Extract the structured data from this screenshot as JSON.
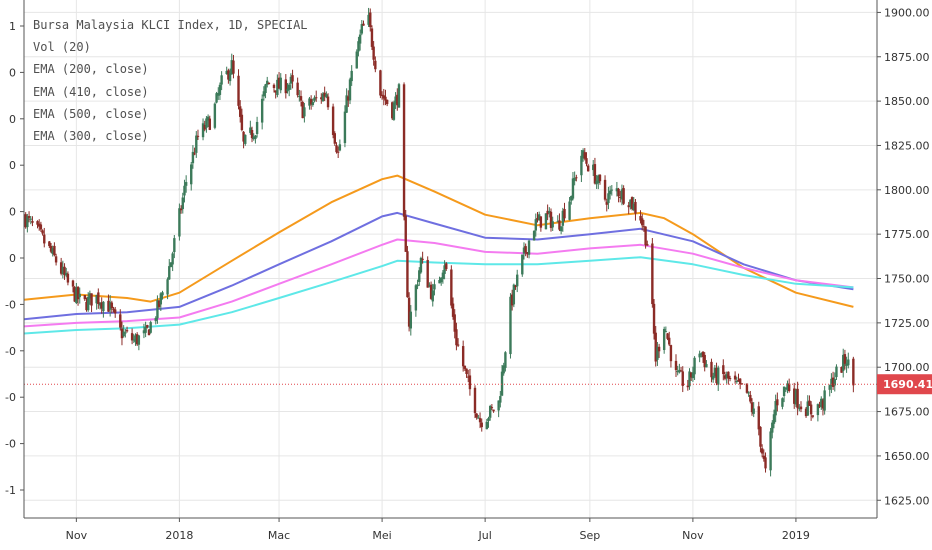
{
  "chart_data": {
    "type": "candlestick",
    "legend": {
      "entries": [
        "Bursa Malaysia KLCI Index, 1D, SPECIAL",
        "Vol (20)",
        "EMA (200, close)",
        "EMA (410, close)",
        "EMA (500, close)",
        "EMA (300, close)"
      ],
      "placement": "top-left"
    },
    "price_axis": {
      "side": "right",
      "range": [
        1615,
        1907
      ],
      "ticks": [
        1625,
        1650,
        1675,
        1700,
        1725,
        1750,
        1775,
        1800,
        1825,
        1850,
        1875,
        1900
      ],
      "tick_labels": [
        "1625.00",
        "1650.00",
        "1675.00",
        "1700.00",
        "1725.00",
        "1750.00",
        "1775.00",
        "1800.00",
        "1825.00",
        "1850.00",
        "1875.00",
        "1900.00"
      ]
    },
    "volume_axis": {
      "side": "left",
      "tick_labels": [
        "1",
        "0",
        "0",
        "0",
        "0",
        "0",
        "-0",
        "-0",
        "-0",
        "-0",
        "-1"
      ]
    },
    "x_axis": {
      "range": [
        "2017-10-01",
        "2019-02-18"
      ],
      "ticks": [
        {
          "date": "2017-11-01",
          "label": "Nov"
        },
        {
          "date": "2018-01-01",
          "label": "2018"
        },
        {
          "date": "2018-03-01",
          "label": "Mac"
        },
        {
          "date": "2018-05-01",
          "label": "Mei"
        },
        {
          "date": "2018-07-01",
          "label": "Jul"
        },
        {
          "date": "2018-09-01",
          "label": "Sep"
        },
        {
          "date": "2018-11-01",
          "label": "Nov"
        },
        {
          "date": "2019-01-01",
          "label": "2019"
        }
      ]
    },
    "last_price": {
      "value": 1690.41,
      "label": "1690.41",
      "color": "#e0474c"
    },
    "colors": {
      "up": "#3c7a5a",
      "down": "#8b2b26",
      "grid": "#e6e6e6"
    },
    "price_path": [
      [
        "2017-10-01",
        1785
      ],
      [
        "2017-10-10",
        1775
      ],
      [
        "2017-10-20",
        1760
      ],
      [
        "2017-10-28",
        1745
      ],
      [
        "2017-11-05",
        1735
      ],
      [
        "2017-11-12",
        1740
      ],
      [
        "2017-11-20",
        1735
      ],
      [
        "2017-11-27",
        1720
      ],
      [
        "2017-12-05",
        1715
      ],
      [
        "2017-12-12",
        1718
      ],
      [
        "2017-12-20",
        1735
      ],
      [
        "2017-12-27",
        1760
      ],
      [
        "2018-01-05",
        1805
      ],
      [
        "2018-01-12",
        1830
      ],
      [
        "2018-01-20",
        1840
      ],
      [
        "2018-01-26",
        1860
      ],
      [
        "2018-02-01",
        1870
      ],
      [
        "2018-02-08",
        1825
      ],
      [
        "2018-02-15",
        1835
      ],
      [
        "2018-02-22",
        1860
      ],
      [
        "2018-03-01",
        1858
      ],
      [
        "2018-03-08",
        1860
      ],
      [
        "2018-03-15",
        1845
      ],
      [
        "2018-03-22",
        1850
      ],
      [
        "2018-03-29",
        1855
      ],
      [
        "2018-04-05",
        1820
      ],
      [
        "2018-04-12",
        1860
      ],
      [
        "2018-04-19",
        1890
      ],
      [
        "2018-04-23",
        1895
      ],
      [
        "2018-04-30",
        1855
      ],
      [
        "2018-05-07",
        1845
      ],
      [
        "2018-05-11",
        1855
      ],
      [
        "2018-05-14",
        1780
      ],
      [
        "2018-05-17",
        1725
      ],
      [
        "2018-05-24",
        1760
      ],
      [
        "2018-05-31",
        1740
      ],
      [
        "2018-06-07",
        1760
      ],
      [
        "2018-06-14",
        1715
      ],
      [
        "2018-06-21",
        1690
      ],
      [
        "2018-06-28",
        1670
      ],
      [
        "2018-07-05",
        1675
      ],
      [
        "2018-07-09",
        1680
      ],
      [
        "2018-07-16",
        1735
      ],
      [
        "2018-07-23",
        1760
      ],
      [
        "2018-07-30",
        1780
      ],
      [
        "2018-08-06",
        1785
      ],
      [
        "2018-08-13",
        1780
      ],
      [
        "2018-08-20",
        1795
      ],
      [
        "2018-08-27",
        1820
      ],
      [
        "2018-09-03",
        1810
      ],
      [
        "2018-09-10",
        1795
      ],
      [
        "2018-09-17",
        1800
      ],
      [
        "2018-09-24",
        1795
      ],
      [
        "2018-10-01",
        1785
      ],
      [
        "2018-10-05",
        1770
      ],
      [
        "2018-10-10",
        1705
      ],
      [
        "2018-10-15",
        1725
      ],
      [
        "2018-10-22",
        1695
      ],
      [
        "2018-10-29",
        1690
      ],
      [
        "2018-11-05",
        1710
      ],
      [
        "2018-11-12",
        1695
      ],
      [
        "2018-11-19",
        1695
      ],
      [
        "2018-11-26",
        1690
      ],
      [
        "2018-12-03",
        1685
      ],
      [
        "2018-12-10",
        1665
      ],
      [
        "2018-12-14",
        1640
      ],
      [
        "2018-12-20",
        1680
      ],
      [
        "2018-12-27",
        1690
      ],
      [
        "2019-01-03",
        1680
      ],
      [
        "2019-01-10",
        1675
      ],
      [
        "2019-01-17",
        1680
      ],
      [
        "2019-01-24",
        1695
      ],
      [
        "2019-01-31",
        1705
      ],
      [
        "2019-02-04",
        1690
      ]
    ],
    "ema_series": [
      {
        "color": "#f59a1c",
        "points": [
          [
            "2017-10-01",
            1738
          ],
          [
            "2017-11-01",
            1741
          ],
          [
            "2017-12-01",
            1739
          ],
          [
            "2017-12-15",
            1737
          ],
          [
            "2018-01-01",
            1742
          ],
          [
            "2018-02-01",
            1760
          ],
          [
            "2018-03-01",
            1776
          ],
          [
            "2018-04-01",
            1793
          ],
          [
            "2018-05-01",
            1806
          ],
          [
            "2018-05-10",
            1808
          ],
          [
            "2018-06-01",
            1799
          ],
          [
            "2018-07-01",
            1786
          ],
          [
            "2018-08-01",
            1780
          ],
          [
            "2018-09-01",
            1784
          ],
          [
            "2018-10-01",
            1787
          ],
          [
            "2018-10-15",
            1784
          ],
          [
            "2018-11-01",
            1775
          ],
          [
            "2018-12-01",
            1756
          ],
          [
            "2019-01-01",
            1742
          ],
          [
            "2019-02-04",
            1734
          ]
        ]
      },
      {
        "color": "#6f6fe0",
        "points": [
          [
            "2017-10-01",
            1727
          ],
          [
            "2017-11-01",
            1730
          ],
          [
            "2017-12-01",
            1731
          ],
          [
            "2018-01-01",
            1734
          ],
          [
            "2018-02-01",
            1746
          ],
          [
            "2018-03-01",
            1758
          ],
          [
            "2018-04-01",
            1771
          ],
          [
            "2018-05-01",
            1785
          ],
          [
            "2018-05-10",
            1787
          ],
          [
            "2018-06-01",
            1781
          ],
          [
            "2018-07-01",
            1773
          ],
          [
            "2018-08-01",
            1772
          ],
          [
            "2018-09-01",
            1775
          ],
          [
            "2018-10-01",
            1778
          ],
          [
            "2018-11-01",
            1771
          ],
          [
            "2018-12-01",
            1758
          ],
          [
            "2019-01-01",
            1749
          ],
          [
            "2019-02-04",
            1744
          ]
        ]
      },
      {
        "color": "#f47bf0",
        "points": [
          [
            "2017-10-01",
            1723
          ],
          [
            "2017-11-01",
            1725
          ],
          [
            "2017-12-01",
            1726
          ],
          [
            "2018-01-01",
            1728
          ],
          [
            "2018-02-01",
            1737
          ],
          [
            "2018-03-01",
            1747
          ],
          [
            "2018-04-01",
            1758
          ],
          [
            "2018-05-01",
            1769
          ],
          [
            "2018-05-10",
            1772
          ],
          [
            "2018-06-01",
            1770
          ],
          [
            "2018-07-01",
            1765
          ],
          [
            "2018-08-01",
            1764
          ],
          [
            "2018-09-01",
            1767
          ],
          [
            "2018-10-01",
            1769
          ],
          [
            "2018-11-01",
            1764
          ],
          [
            "2018-12-01",
            1756
          ],
          [
            "2019-01-01",
            1749
          ],
          [
            "2019-02-04",
            1745
          ]
        ]
      },
      {
        "color": "#5ee8e8",
        "points": [
          [
            "2017-10-01",
            1719
          ],
          [
            "2017-11-01",
            1721
          ],
          [
            "2017-12-01",
            1722
          ],
          [
            "2018-01-01",
            1724
          ],
          [
            "2018-02-01",
            1731
          ],
          [
            "2018-03-01",
            1739
          ],
          [
            "2018-04-01",
            1748
          ],
          [
            "2018-05-01",
            1757
          ],
          [
            "2018-05-10",
            1760
          ],
          [
            "2018-06-01",
            1759
          ],
          [
            "2018-07-01",
            1758
          ],
          [
            "2018-08-01",
            1758
          ],
          [
            "2018-09-01",
            1760
          ],
          [
            "2018-10-01",
            1762
          ],
          [
            "2018-11-01",
            1758
          ],
          [
            "2018-12-01",
            1752
          ],
          [
            "2019-01-01",
            1747
          ],
          [
            "2019-02-04",
            1745
          ]
        ]
      }
    ]
  }
}
